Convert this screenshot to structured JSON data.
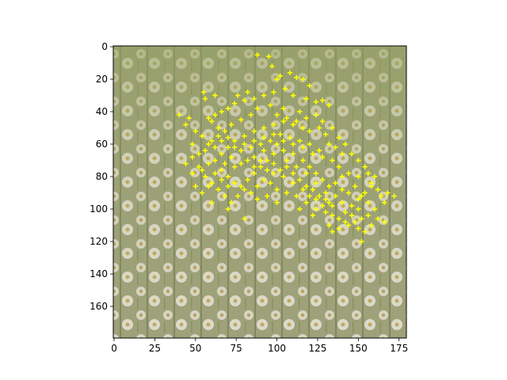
{
  "chart_data": {
    "type": "scatter",
    "title": "",
    "xlabel": "",
    "ylabel": "",
    "background": "photo of white daisies (chamomile) in a green field, desaturated",
    "xlim": [
      -0.5,
      179.5
    ],
    "ylim": [
      179.5,
      -0.5
    ],
    "y_inverted": true,
    "grid": false,
    "legend": "none",
    "xticks": [
      0,
      25,
      50,
      75,
      100,
      125,
      150,
      175
    ],
    "yticks": [
      0,
      20,
      40,
      60,
      80,
      100,
      120,
      140,
      160
    ],
    "marker": "plus",
    "marker_color": "#ffff00",
    "series": [
      {
        "points": [
          [
            88,
            5
          ],
          [
            95,
            6
          ],
          [
            97,
            12
          ],
          [
            102,
            18
          ],
          [
            100,
            20
          ],
          [
            108,
            16
          ],
          [
            112,
            19
          ],
          [
            116,
            20
          ],
          [
            120,
            24
          ],
          [
            105,
            26
          ],
          [
            98,
            28
          ],
          [
            92,
            30
          ],
          [
            86,
            32
          ],
          [
            80,
            33
          ],
          [
            74,
            35
          ],
          [
            70,
            38
          ],
          [
            66,
            40
          ],
          [
            62,
            42
          ],
          [
            58,
            44
          ],
          [
            55,
            28
          ],
          [
            56,
            32
          ],
          [
            62,
            30
          ],
          [
            76,
            30
          ],
          [
            82,
            28
          ],
          [
            110,
            30
          ],
          [
            118,
            32
          ],
          [
            124,
            34
          ],
          [
            128,
            33
          ],
          [
            132,
            36
          ],
          [
            114,
            40
          ],
          [
            104,
            38
          ],
          [
            96,
            36
          ],
          [
            88,
            38
          ],
          [
            84,
            42
          ],
          [
            78,
            45
          ],
          [
            72,
            48
          ],
          [
            68,
            52
          ],
          [
            64,
            55
          ],
          [
            60,
            58
          ],
          [
            58,
            60
          ],
          [
            54,
            55
          ],
          [
            50,
            52
          ],
          [
            48,
            60
          ],
          [
            52,
            66
          ],
          [
            56,
            64
          ],
          [
            62,
            62
          ],
          [
            66,
            66
          ],
          [
            70,
            62
          ],
          [
            74,
            58
          ],
          [
            80,
            55
          ],
          [
            86,
            52
          ],
          [
            92,
            50
          ],
          [
            98,
            48
          ],
          [
            104,
            46
          ],
          [
            110,
            48
          ],
          [
            116,
            50
          ],
          [
            120,
            52
          ],
          [
            126,
            50
          ],
          [
            130,
            54
          ],
          [
            132,
            60
          ],
          [
            136,
            62
          ],
          [
            140,
            66
          ],
          [
            126,
            64
          ],
          [
            120,
            60
          ],
          [
            114,
            58
          ],
          [
            108,
            56
          ],
          [
            102,
            54
          ],
          [
            96,
            58
          ],
          [
            90,
            60
          ],
          [
            84,
            62
          ],
          [
            78,
            64
          ],
          [
            72,
            68
          ],
          [
            68,
            72
          ],
          [
            66,
            76
          ],
          [
            70,
            80
          ],
          [
            74,
            84
          ],
          [
            78,
            86
          ],
          [
            82,
            82
          ],
          [
            86,
            78
          ],
          [
            90,
            74
          ],
          [
            94,
            70
          ],
          [
            98,
            66
          ],
          [
            104,
            64
          ],
          [
            110,
            66
          ],
          [
            116,
            70
          ],
          [
            120,
            74
          ],
          [
            124,
            78
          ],
          [
            128,
            82
          ],
          [
            132,
            86
          ],
          [
            136,
            84
          ],
          [
            140,
            80
          ],
          [
            144,
            78
          ],
          [
            140,
            88
          ],
          [
            136,
            92
          ],
          [
            132,
            96
          ],
          [
            128,
            98
          ],
          [
            124,
            94
          ],
          [
            120,
            92
          ],
          [
            116,
            88
          ],
          [
            110,
            84
          ],
          [
            104,
            80
          ],
          [
            98,
            78
          ],
          [
            92,
            82
          ],
          [
            88,
            86
          ],
          [
            84,
            90
          ],
          [
            80,
            88
          ],
          [
            76,
            92
          ],
          [
            100,
            88
          ],
          [
            106,
            90
          ],
          [
            112,
            92
          ],
          [
            118,
            96
          ],
          [
            124,
            100
          ],
          [
            130,
            102
          ],
          [
            134,
            104
          ],
          [
            138,
            106
          ],
          [
            142,
            102
          ],
          [
            146,
            98
          ],
          [
            150,
            94
          ],
          [
            154,
            90
          ],
          [
            158,
            86
          ],
          [
            160,
            80
          ],
          [
            156,
            78
          ],
          [
            150,
            80
          ],
          [
            148,
            86
          ],
          [
            152,
            92
          ],
          [
            156,
            96
          ],
          [
            160,
            100
          ],
          [
            156,
            104
          ],
          [
            152,
            106
          ],
          [
            148,
            108
          ],
          [
            144,
            110
          ],
          [
            150,
            112
          ],
          [
            154,
            114
          ],
          [
            158,
            110
          ],
          [
            162,
            106
          ],
          [
            164,
            92
          ],
          [
            168,
            90
          ],
          [
            172,
            92
          ],
          [
            166,
            108
          ],
          [
            152,
            120
          ],
          [
            80,
            106
          ],
          [
            70,
            100
          ],
          [
            60,
            96
          ],
          [
            54,
            90
          ],
          [
            50,
            86
          ],
          [
            48,
            78
          ],
          [
            44,
            72
          ],
          [
            48,
            68
          ],
          [
            52,
            74
          ],
          [
            56,
            80
          ],
          [
            60,
            84
          ],
          [
            64,
            88
          ],
          [
            68,
            92
          ],
          [
            72,
            96
          ],
          [
            40,
            42
          ],
          [
            44,
            48
          ],
          [
            46,
            44
          ],
          [
            60,
            46
          ],
          [
            64,
            50
          ],
          [
            86,
            68
          ],
          [
            92,
            64
          ],
          [
            100,
            60
          ],
          [
            106,
            70
          ],
          [
            112,
            74
          ],
          [
            118,
            78
          ],
          [
            124,
            84
          ],
          [
            130,
            90
          ],
          [
            96,
            84
          ],
          [
            88,
            94
          ],
          [
            94,
            92
          ],
          [
            100,
            96
          ],
          [
            114,
            100
          ],
          [
            122,
            104
          ],
          [
            132,
            110
          ],
          [
            140,
            96
          ],
          [
            144,
            90
          ],
          [
            138,
            74
          ],
          [
            134,
            70
          ],
          [
            128,
            68
          ],
          [
            122,
            66
          ],
          [
            116,
            62
          ],
          [
            110,
            60
          ],
          [
            104,
            58
          ],
          [
            98,
            54
          ],
          [
            92,
            56
          ],
          [
            86,
            58
          ],
          [
            80,
            60
          ],
          [
            74,
            62
          ],
          [
            70,
            56
          ],
          [
            66,
            58
          ],
          [
            62,
            70
          ],
          [
            58,
            72
          ],
          [
            54,
            76
          ],
          [
            58,
            86
          ],
          [
            62,
            78
          ],
          [
            66,
            82
          ],
          [
            70,
            86
          ],
          [
            74,
            74
          ],
          [
            78,
            72
          ],
          [
            82,
            70
          ],
          [
            86,
            74
          ],
          [
            90,
            70
          ],
          [
            94,
            76
          ],
          [
            98,
            72
          ],
          [
            102,
            76
          ],
          [
            106,
            74
          ],
          [
            110,
            78
          ],
          [
            114,
            82
          ],
          [
            118,
            86
          ],
          [
            122,
            88
          ],
          [
            126,
            92
          ],
          [
            130,
            94
          ],
          [
            134,
            98
          ],
          [
            100,
            42
          ],
          [
            106,
            44
          ],
          [
            112,
            46
          ],
          [
            118,
            44
          ],
          [
            124,
            42
          ],
          [
            128,
            46
          ],
          [
            134,
            50
          ],
          [
            138,
            56
          ],
          [
            142,
            60
          ],
          [
            146,
            66
          ],
          [
            150,
            70
          ],
          [
            154,
            74
          ],
          [
            158,
            84
          ],
          [
            162,
            88
          ],
          [
            166,
            96
          ],
          [
            150,
            100
          ],
          [
            146,
            104
          ],
          [
            142,
            108
          ],
          [
            138,
            112
          ],
          [
            134,
            114
          ]
        ]
      }
    ]
  }
}
